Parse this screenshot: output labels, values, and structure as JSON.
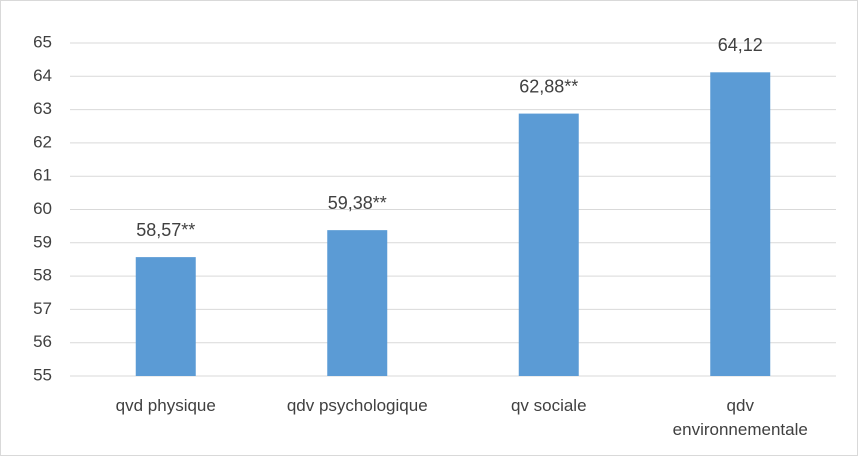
{
  "chart_data": {
    "type": "bar",
    "categories": [
      "qvd physique",
      "qdv psychologique",
      "qv sociale",
      "qdv environnementale"
    ],
    "values": [
      58.57,
      59.38,
      62.88,
      64.12
    ],
    "value_labels": [
      "58,57**",
      "59,38**",
      "62,88**",
      "64,12"
    ],
    "color": "#5b9bd5",
    "ylim": [
      55,
      65
    ],
    "yticks": [
      55,
      56,
      57,
      58,
      59,
      60,
      61,
      62,
      63,
      64,
      65
    ],
    "grid": true
  }
}
